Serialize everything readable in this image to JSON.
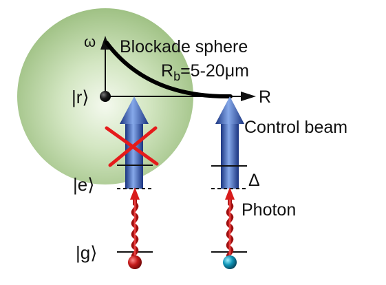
{
  "labels": {
    "omega": "ω",
    "blockade_sphere": "Blockade sphere",
    "rb_main": "R",
    "rb_sub": "b",
    "rb_value": "=5-20μm",
    "r_axis": "R",
    "state_r": "|r⟩",
    "state_e": "|e⟩",
    "state_g": "|g⟩",
    "control_beam": "Control beam",
    "delta": "Δ",
    "photon": "Photon"
  },
  "colors": {
    "sphere": "#a9c98e",
    "beam_dark": "#1d3a8a",
    "beam_light": "#8fb3ee",
    "photon_red": "#d81b1b",
    "atom_left": "#b01515",
    "atom_right": "#0d8fb0",
    "cross": "#e51b1b"
  },
  "icons": {
    "blocked_marker": "red-x-cross-icon",
    "left_atom": "red-sphere-icon",
    "right_atom": "teal-sphere-icon",
    "rydberg_atom": "black-sphere-icon"
  }
}
